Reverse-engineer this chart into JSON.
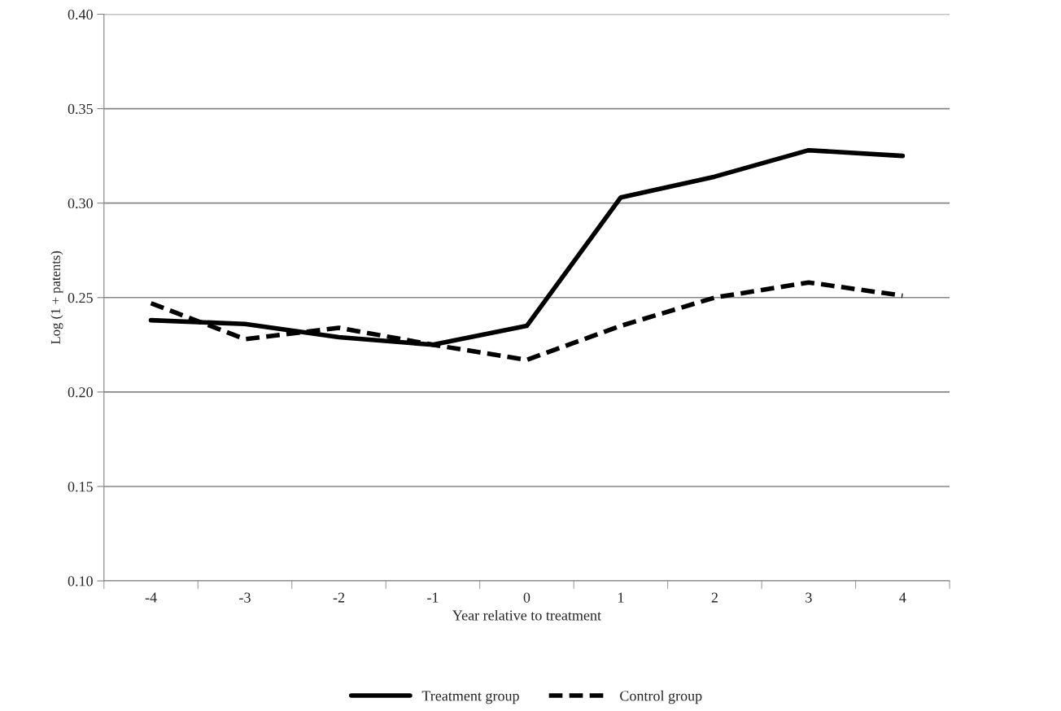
{
  "chart_data": {
    "type": "line",
    "xlabel": "Year relative to treatment",
    "ylabel": "Log (1 + patents)",
    "categories": [
      "-4",
      "-3",
      "-2",
      "-1",
      "0",
      "1",
      "2",
      "3",
      "4"
    ],
    "series": [
      {
        "name": "Treatment group",
        "color": "#000000",
        "line_style": "solid",
        "values": [
          0.238,
          0.236,
          0.229,
          0.225,
          0.235,
          0.303,
          0.314,
          0.328,
          0.325
        ]
      },
      {
        "name": "Control group",
        "color": "#000000",
        "line_style": "dashed",
        "values": [
          0.247,
          0.228,
          0.234,
          0.225,
          0.217,
          0.235,
          0.25,
          0.258,
          0.251
        ]
      }
    ],
    "ylim": [
      0.1,
      0.4
    ],
    "yticks": [
      {
        "value": 0.1,
        "label": "0.10"
      },
      {
        "value": 0.15,
        "label": "0.15"
      },
      {
        "value": 0.2,
        "label": "0.20"
      },
      {
        "value": 0.25,
        "label": "0.25"
      },
      {
        "value": 0.3,
        "label": "0.30"
      },
      {
        "value": 0.35,
        "label": "0.35"
      },
      {
        "value": 0.4,
        "label": "0.40"
      }
    ],
    "grid": "y",
    "legend": "bottom",
    "marker": "none"
  }
}
